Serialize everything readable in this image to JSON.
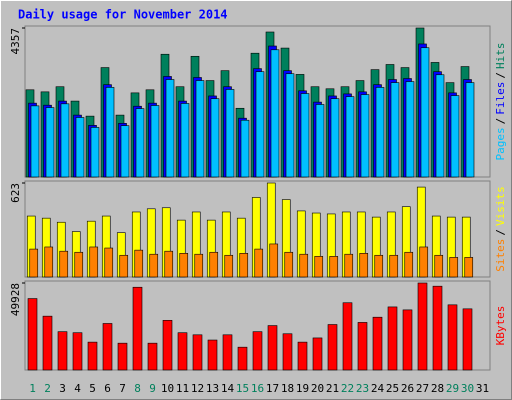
{
  "title": "Daily usage for November 2014",
  "x_axis": {
    "categories": [
      1,
      2,
      3,
      4,
      5,
      6,
      7,
      8,
      9,
      10,
      11,
      12,
      13,
      14,
      15,
      16,
      17,
      18,
      19,
      20,
      21,
      22,
      23,
      24,
      25,
      26,
      27,
      28,
      29,
      30,
      31
    ],
    "colors": [
      "#00805c",
      "#00805c",
      "#000000",
      "#000000",
      "#000000",
      "#000000",
      "#000000",
      "#00805c",
      "#00805c",
      "#000000",
      "#000000",
      "#000000",
      "#000000",
      "#000000",
      "#00805c",
      "#00805c",
      "#000000",
      "#000000",
      "#000000",
      "#000000",
      "#000000",
      "#00805c",
      "#00805c",
      "#000000",
      "#000000",
      "#000000",
      "#000000",
      "#000000",
      "#00805c",
      "#00805c",
      "#000000"
    ]
  },
  "chart_data": [
    {
      "type": "bar",
      "ylim": [
        0,
        4357
      ],
      "yticks": [
        4357
      ],
      "legend_separator": "/",
      "series": [
        {
          "name": "Hits",
          "color": "#00805c",
          "values": [
            2550,
            2490,
            2640,
            2220,
            1780,
            3200,
            1810,
            2460,
            2550,
            3590,
            2640,
            3530,
            2820,
            3110,
            2010,
            3620,
            4240,
            3770,
            3000,
            2640,
            2580,
            2640,
            2820,
            3140,
            3290,
            3200,
            4357,
            3350,
            2760,
            3230,
            null
          ]
        },
        {
          "name": "Files",
          "color": "#0000ff",
          "values": [
            2160,
            2100,
            2220,
            1810,
            1510,
            2700,
            1570,
            2070,
            2160,
            2940,
            2220,
            2910,
            2370,
            2640,
            1720,
            3170,
            3830,
            3110,
            2520,
            2190,
            2370,
            2430,
            2490,
            2700,
            2850,
            2880,
            3890,
            3080,
            2460,
            2850,
            null
          ]
        },
        {
          "name": "Pages",
          "color": "#00c0ff",
          "values": [
            2080,
            2030,
            2140,
            1740,
            1450,
            2620,
            1500,
            2000,
            2090,
            2850,
            2150,
            2820,
            2290,
            2560,
            1660,
            3080,
            3720,
            3020,
            2440,
            2120,
            2290,
            2350,
            2410,
            2620,
            2760,
            2790,
            3780,
            2990,
            2380,
            2760,
            null
          ]
        }
      ]
    },
    {
      "type": "bar",
      "ylim": [
        0,
        623
      ],
      "yticks": [
        623
      ],
      "legend_separator": "/",
      "series": [
        {
          "name": "Visits",
          "color": "#ffff00",
          "values": [
            404,
            390,
            363,
            301,
            370,
            404,
            294,
            431,
            452,
            459,
            377,
            431,
            377,
            431,
            390,
            527,
            623,
            513,
            438,
            424,
            418,
            431,
            431,
            397,
            431,
            466,
            596,
            404,
            397,
            397,
            null
          ]
        },
        {
          "name": "Sites",
          "color": "#ff8000",
          "values": [
            185,
            199,
            171,
            164,
            199,
            192,
            144,
            178,
            151,
            171,
            157,
            151,
            164,
            144,
            157,
            185,
            219,
            164,
            151,
            137,
            137,
            151,
            157,
            144,
            144,
            164,
            199,
            144,
            130,
            130,
            null
          ]
        }
      ]
    },
    {
      "type": "bar",
      "ylim": [
        0,
        49928
      ],
      "yticks": [
        49928
      ],
      "series": [
        {
          "name": "KBytes",
          "color": "#ff0000",
          "values": [
            41000,
            30900,
            22000,
            21400,
            16000,
            26700,
            15400,
            47500,
            15400,
            28500,
            21400,
            20200,
            17200,
            20200,
            13100,
            22000,
            25500,
            20800,
            16000,
            18400,
            26100,
            38600,
            27300,
            30300,
            36200,
            34500,
            49928,
            48100,
            37400,
            35100,
            null
          ]
        }
      ]
    }
  ]
}
